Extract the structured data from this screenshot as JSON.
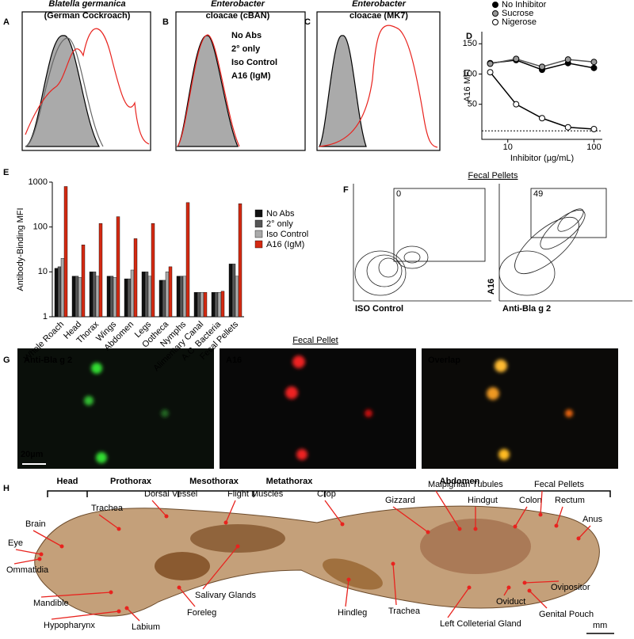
{
  "panels": {
    "A": {
      "letter": "A",
      "title": "Blatella germanica",
      "subtitle": "(German Cockroach)"
    },
    "B": {
      "letter": "B",
      "title": "Enterobacter",
      "subtitle": "cloacae (cBAN)",
      "legend": [
        {
          "name": "No Abs",
          "color": "#000000"
        },
        {
          "name": "2° only",
          "color": "#000000"
        },
        {
          "name": "Iso Control",
          "color": "#000000"
        },
        {
          "name": "A16 (IgM)",
          "color": "#e8231e"
        }
      ]
    },
    "C": {
      "letter": "C",
      "title": "Enterobacter",
      "subtitle": "cloacae (MK7)"
    },
    "F": {
      "letter": "F",
      "title": "Fecal Pellets",
      "gates": [
        0,
        49
      ],
      "x_labels": [
        "ISO Control",
        "Anti-Bla g 2"
      ],
      "y_label": "A16"
    },
    "G": {
      "letter": "G",
      "title": "Fecal Pellet",
      "channels": [
        {
          "name": "Anti-Bla g 2",
          "color": "#22cc22"
        },
        {
          "name": "A16",
          "color": "#ee2222"
        },
        {
          "name": "Overlap",
          "color": "#ff8c1a"
        }
      ],
      "scale_bar": "20µm"
    },
    "H": {
      "letter": "H",
      "segments": [
        "Head",
        "Prothorax",
        "Mesothorax",
        "Metathorax",
        "Abdomen"
      ],
      "structures": [
        "Trachea",
        "Brain",
        "Eye",
        "Ommatidia",
        "Dorsal Vessel",
        "Flight Muscles",
        "Crop",
        "Gizzard",
        "Malpighian Tubules",
        "Hindgut",
        "Colon",
        "Fecal Pellets",
        "Rectum",
        "Anus",
        "Mandible",
        "Hypopharynx",
        "Labium",
        "Foreleg",
        "Salivary Glands",
        "Hindleg",
        "Trachea",
        "Oviduct",
        "Left Colleterial Gland",
        "Genital Pouch",
        "Ovipositor"
      ],
      "scale_bar": "mm"
    }
  },
  "chart_data": [
    {
      "type": "line",
      "panel": "D",
      "x_label": "Inhibitor (µg/mL)",
      "y_label": "A16 MFI",
      "log_x": true,
      "x": [
        6.25,
        12.5,
        25,
        50,
        100
      ],
      "xlim": [
        5,
        125
      ],
      "xticks": [
        10,
        100
      ],
      "ylim": [
        -8,
        170
      ],
      "yticks": [
        50,
        100,
        150
      ],
      "baseline": 6,
      "series": [
        {
          "name": "No Inhibitor",
          "color": "#000000",
          "fill": "#000000",
          "values": [
            118,
            123,
            107,
            118,
            110
          ]
        },
        {
          "name": "Sucrose",
          "color": "#555555",
          "fill": "#999999",
          "values": [
            117,
            125,
            112,
            124,
            120
          ]
        },
        {
          "name": "Nigerose",
          "color": "#000000",
          "fill": "#ffffff",
          "values": [
            103,
            50,
            27,
            12,
            9
          ]
        }
      ]
    },
    {
      "type": "bar",
      "panel": "E",
      "y_label": "Antibody-Binding MFI",
      "log_y": true,
      "ylim": [
        1,
        1000
      ],
      "yticks": [
        1,
        10,
        100,
        1000
      ],
      "categories": [
        "Whole Roach",
        "Head",
        "Thorax",
        "Wings",
        "Abdomen",
        "Legs",
        "Ootheca",
        "Nymphs",
        "Alimentary Canal",
        "A.C. Bacteria",
        "Fecal Pellets"
      ],
      "series": [
        {
          "name": "No Abs",
          "color": "#111111",
          "values": [
            12,
            8,
            10,
            8,
            7,
            10,
            6.5,
            8,
            3.5,
            3.5,
            15
          ]
        },
        {
          "name": "2° only",
          "color": "#555555",
          "values": [
            13,
            8,
            10,
            8,
            7,
            10,
            6.5,
            8,
            3.5,
            3.5,
            15
          ]
        },
        {
          "name": "Iso Control",
          "color": "#aaaaaa",
          "values": [
            20,
            7.5,
            8,
            7.5,
            11,
            8,
            10,
            8,
            3.5,
            3.5,
            8
          ]
        },
        {
          "name": "A16 (IgM)",
          "color": "#d42a12",
          "values": [
            800,
            40,
            120,
            170,
            55,
            120,
            13,
            350,
            3.5,
            3.7,
            330
          ]
        }
      ]
    }
  ]
}
